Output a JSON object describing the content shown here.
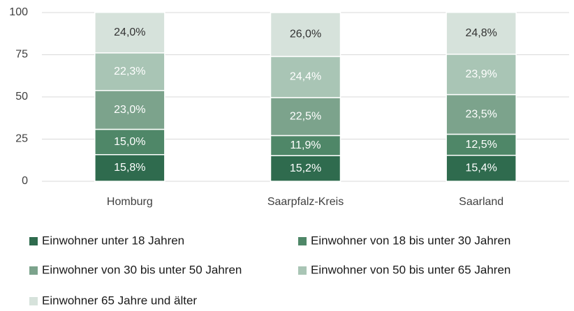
{
  "chart_data": {
    "type": "stacked_bar",
    "categories": [
      "Homburg",
      "Saarpfalz-Kreis",
      "Saarland"
    ],
    "series": [
      {
        "name": "Einwohner unter 18 Jahren",
        "color": "#2f6b4e",
        "values": [
          15.8,
          15.2,
          15.4
        ],
        "value_labels": [
          "15,8%",
          "15,2%",
          "15,4%"
        ]
      },
      {
        "name": "Einwohner von 18 bis unter 30 Jahren",
        "color": "#4f8768",
        "values": [
          15.0,
          11.9,
          12.5
        ],
        "value_labels": [
          "15,0%",
          "11,9%",
          "12,5%"
        ]
      },
      {
        "name": "Einwohner von 30 bis unter 50 Jahren",
        "color": "#7ca38c",
        "values": [
          23.0,
          22.5,
          23.5
        ],
        "value_labels": [
          "23,0%",
          "22,5%",
          "23,5%"
        ]
      },
      {
        "name": "Einwohner von 50 bis unter 65 Jahren",
        "color": "#a9c5b5",
        "values": [
          22.3,
          24.4,
          23.9
        ],
        "value_labels": [
          "22,3%",
          "24,4%",
          "23,9%"
        ]
      },
      {
        "name": "Einwohner 65 Jahre und älter",
        "color": "#d6e2db",
        "values": [
          24.0,
          26.0,
          24.8
        ],
        "value_labels": [
          "24,0%",
          "26,0%",
          "24,8%"
        ]
      }
    ],
    "ylim": [
      0,
      100
    ],
    "yticks": [
      0,
      25,
      50,
      75,
      100
    ],
    "grid": true
  }
}
